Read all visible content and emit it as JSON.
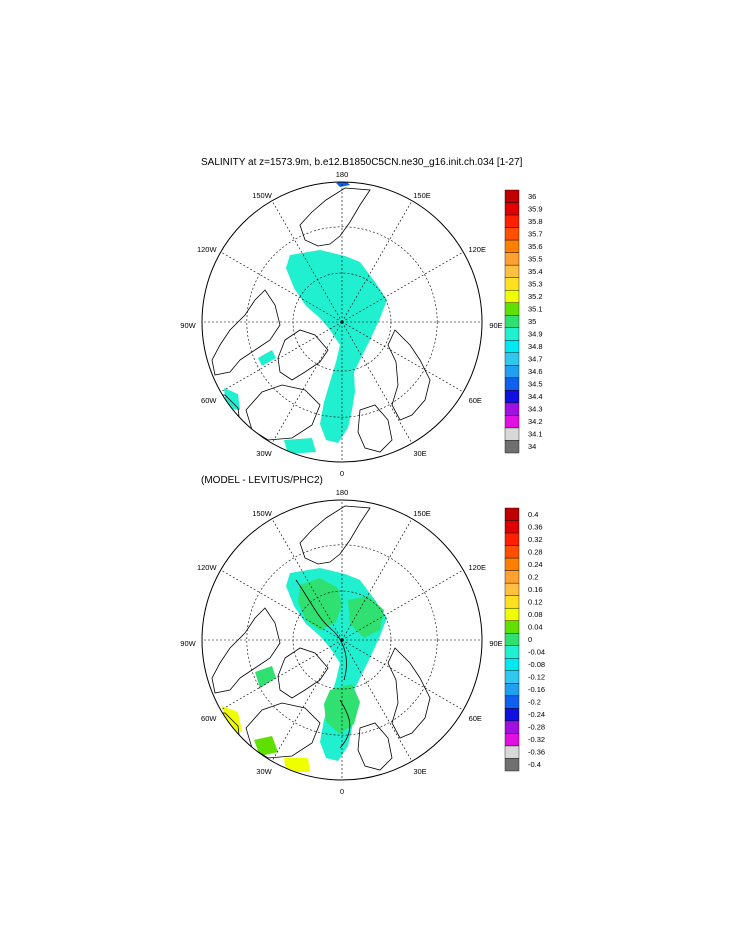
{
  "chart_data": [
    {
      "type": "heatmap",
      "title": "SALINITY at z=1573.9m, b.e12.B1850C5CN.ne30_g16.init.ch.034 [1-27]",
      "projection": "north-polar-stereographic",
      "longitude_labels": [
        "180",
        "150E",
        "120E",
        "90E",
        "60E",
        "30E",
        "0",
        "30W",
        "60W",
        "90W",
        "120W",
        "150W"
      ],
      "colorbar": {
        "levels": [
          "36",
          "35.9",
          "35.8",
          "35.7",
          "35.6",
          "35.5",
          "35.4",
          "35.3",
          "35.2",
          "35.1",
          "35",
          "34.9",
          "34.8",
          "34.7",
          "34.6",
          "34.5",
          "34.4",
          "34.3",
          "34.2",
          "34.1",
          "34"
        ],
        "colors": [
          "#c00000",
          "#e00000",
          "#ff2000",
          "#ff5000",
          "#ff8000",
          "#ffa030",
          "#ffc040",
          "#ffe020",
          "#f0ff00",
          "#60e000",
          "#30e070",
          "#20f0d0",
          "#00e8f0",
          "#30c8f0",
          "#20a0f0",
          "#1060f0",
          "#1010e0",
          "#a010e0",
          "#e010e0",
          "#d8d8d8",
          "#707070"
        ]
      },
      "field": {
        "dominant_value_range": [
          34.9,
          35.0
        ],
        "dominant_color": "#20f0d0",
        "notes": "Arctic basin and Norwegian/Greenland seas at 34.9-35.0"
      }
    },
    {
      "type": "heatmap",
      "title": "(MODEL - LEVITUS/PHC2)",
      "projection": "north-polar-stereographic",
      "longitude_labels": [
        "180",
        "150E",
        "120E",
        "90E",
        "60E",
        "30E",
        "0",
        "30W",
        "60W",
        "90W",
        "120W",
        "150W"
      ],
      "colorbar": {
        "levels": [
          "0.4",
          "0.36",
          "0.32",
          "0.28",
          "0.24",
          "0.2",
          "0.16",
          "0.12",
          "0.08",
          "0.04",
          "0",
          "-0.04",
          "-0.08",
          "-0.12",
          "-0.16",
          "-0.2",
          "-0.24",
          "-0.28",
          "-0.32",
          "-0.36",
          "-0.4"
        ],
        "colors": [
          "#c00000",
          "#e00000",
          "#ff2000",
          "#ff5000",
          "#ff8000",
          "#ffa030",
          "#ffc040",
          "#ffe020",
          "#f0ff00",
          "#60e000",
          "#30e070",
          "#20f0d0",
          "#00e8f0",
          "#30c8f0",
          "#20a0f0",
          "#1060f0",
          "#1010e0",
          "#a010e0",
          "#e010e0",
          "#d8d8d8",
          "#707070"
        ]
      },
      "field": {
        "dominant_value_ranges": [
          [
            0,
            0.04
          ],
          [
            -0.04,
            0
          ]
        ],
        "colors": [
          "#30e070",
          "#20f0d0"
        ],
        "notes": "mostly near-zero differences; positive anomalies (0.08-0.16) south of Greenland"
      }
    }
  ]
}
